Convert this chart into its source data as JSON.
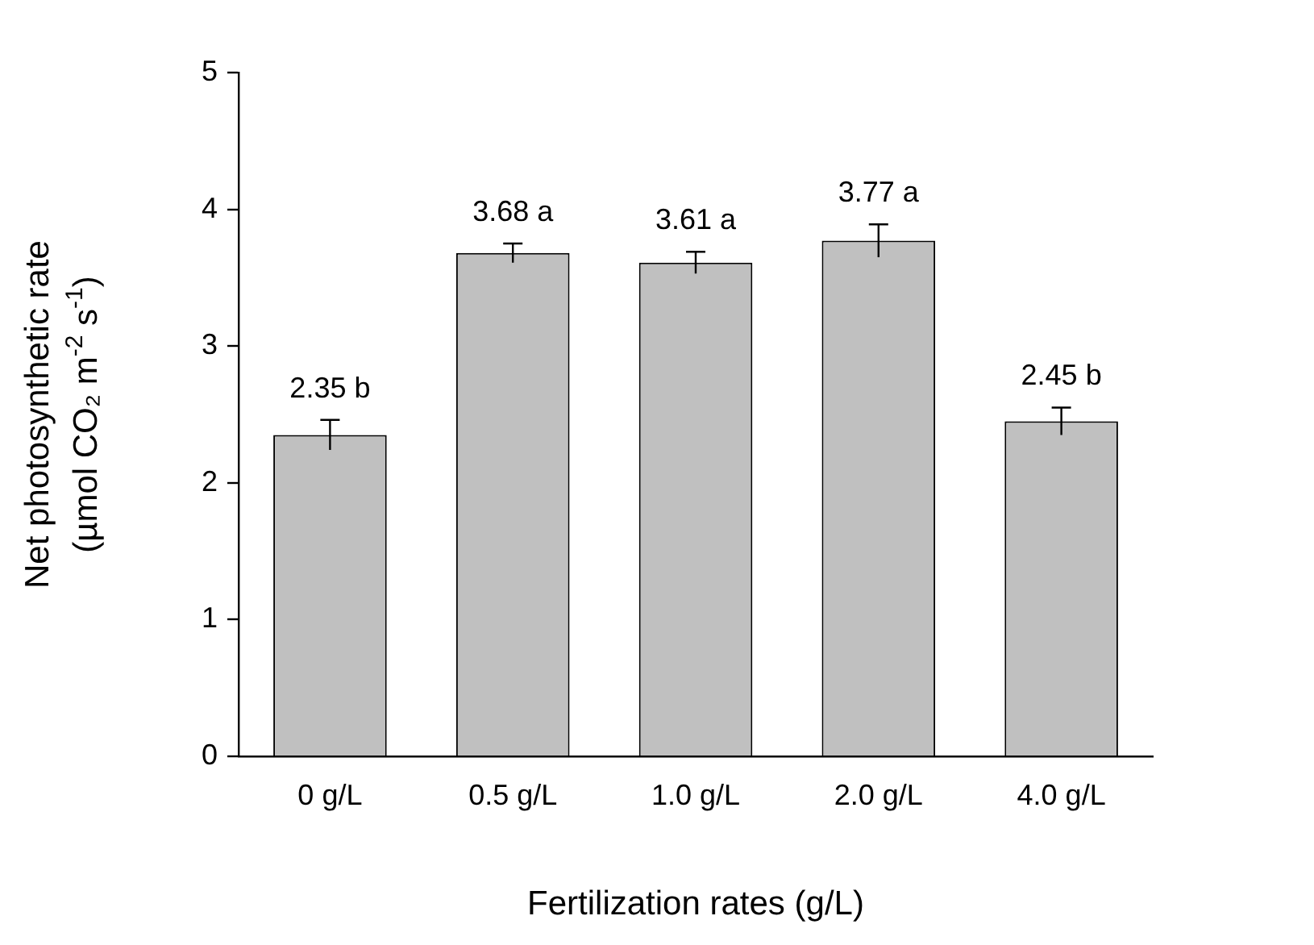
{
  "chart_data": {
    "type": "bar",
    "xlabel": "Fertilization rates (g/L)",
    "ylabel": "Net photosynthetic rate\n(µmol CO₂ m$^{-2}$ s$^{-1}$)",
    "categories": [
      "0 g/L",
      "0.5 g/L",
      "1.0 g/L",
      "2.0 g/L",
      "4.0 g/L"
    ],
    "values": [
      2.35,
      3.68,
      3.61,
      3.77,
      2.45
    ],
    "errors": [
      0.11,
      0.07,
      0.08,
      0.12,
      0.1
    ],
    "value_labels": [
      "2.35 b",
      "3.68 a",
      "3.61 a",
      "3.77 a",
      "2.45 b"
    ],
    "color": "#c0c0c0",
    "ylim": [
      0,
      5
    ],
    "yticks": [
      0,
      1,
      2,
      3,
      4,
      5
    ],
    "grid": false,
    "legend": false
  }
}
